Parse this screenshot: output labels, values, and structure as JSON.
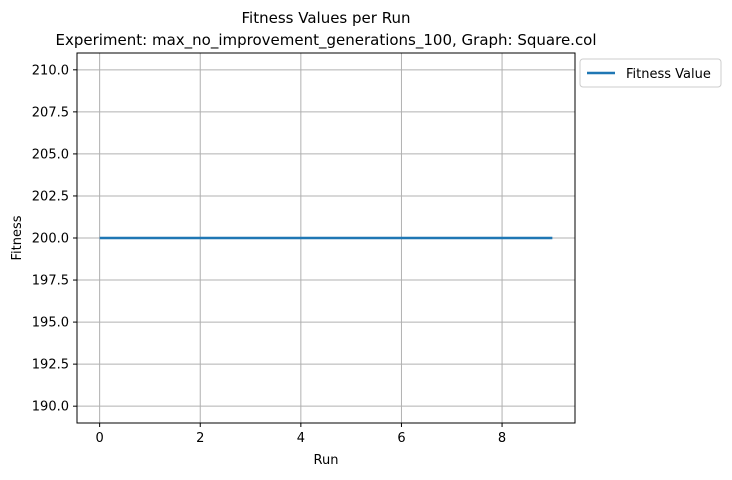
{
  "chart_data": {
    "type": "line",
    "title": "Fitness Values per Run",
    "subtitle": "Experiment: max_no_improvement_generations_100, Graph: Square.col",
    "xlabel": "Run",
    "ylabel": "Fitness",
    "xlim": [
      -0.45,
      9.45
    ],
    "ylim": [
      189,
      211
    ],
    "x_ticks": [
      0,
      2,
      4,
      6,
      8
    ],
    "x_tick_labels": [
      "0",
      "2",
      "4",
      "6",
      "8"
    ],
    "y_ticks": [
      190.0,
      192.5,
      195.0,
      197.5,
      200.0,
      202.5,
      205.0,
      207.5,
      210.0
    ],
    "y_tick_labels": [
      "190.0",
      "192.5",
      "195.0",
      "197.5",
      "200.0",
      "202.5",
      "205.0",
      "207.5",
      "210.0"
    ],
    "grid": true,
    "legend_position": "outside-top-right",
    "series": [
      {
        "name": "Fitness Value",
        "color": "#1f77b4",
        "x": [
          0,
          1,
          2,
          3,
          4,
          5,
          6,
          7,
          8,
          9
        ],
        "y": [
          200,
          200,
          200,
          200,
          200,
          200,
          200,
          200,
          200,
          200
        ]
      }
    ]
  }
}
